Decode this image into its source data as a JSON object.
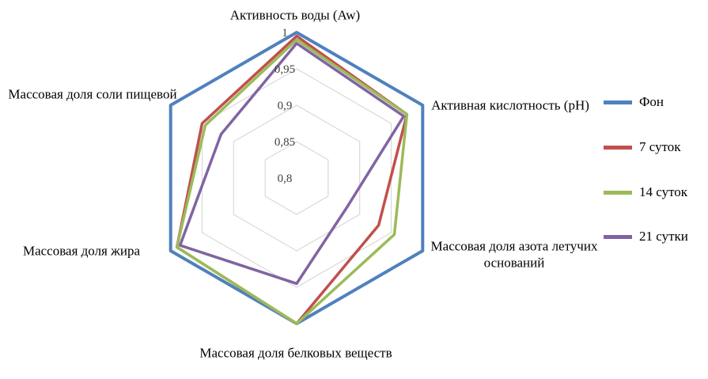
{
  "chart_data": {
    "type": "radar",
    "title": "",
    "categories": [
      "Активность воды (Aw)",
      "Активная кислотность (pH)",
      "Массовая доля азота летучих оснований",
      "Массовая доля белковых веществ",
      "Массовая доля жира",
      "Массовая доля соли пищевой"
    ],
    "series": [
      {
        "name": "Фон",
        "color": "#4F81BD",
        "values": [
          1,
          1,
          1,
          1,
          1,
          1
        ]
      },
      {
        "name": "7 суток",
        "color": "#C0504D",
        "values": [
          0.995,
          0.975,
          0.93,
          1,
          0.99,
          0.95
        ]
      },
      {
        "name": "14 суток",
        "color": "#9BBB59",
        "values": [
          0.99,
          0.975,
          0.955,
          1,
          0.99,
          0.945
        ]
      },
      {
        "name": "21 сутки",
        "color": "#8064A2",
        "values": [
          0.985,
          0.97,
          0.88,
          0.945,
          0.985,
          0.92
        ]
      }
    ],
    "radial_axis": {
      "min": 0.8,
      "max": 1.0,
      "ticks": [
        1,
        0.95,
        0.9,
        0.85,
        0.8
      ],
      "tick_labels": [
        "1",
        "0,95",
        "0,9",
        "0,85",
        "0,8"
      ]
    },
    "legend": {
      "position": "right"
    },
    "grid_color": "#D9D9D9",
    "background": "#FFFFFF"
  }
}
